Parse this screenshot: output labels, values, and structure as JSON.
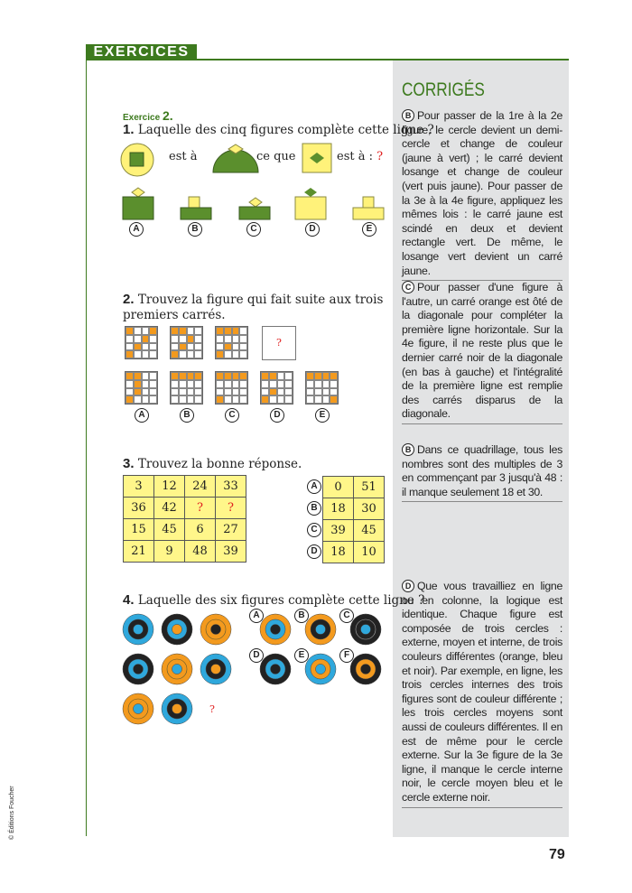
{
  "header": {
    "section": "EXERCICES"
  },
  "exercise": {
    "label": "Exercice",
    "number": "2."
  },
  "q1": {
    "num": "1.",
    "text": "Laquelle des cinq figures complète cette ligne ?",
    "w1": "est à",
    "w2": "ce que",
    "w3": "est à :",
    "mark": "?",
    "options": [
      "A",
      "B",
      "C",
      "D",
      "E"
    ]
  },
  "q2": {
    "num": "2.",
    "text": "Trouvez la figure qui fait suite aux trois premiers carrés.",
    "mark": "?",
    "sequence": [
      [
        [
          0,
          0
        ],
        [
          0,
          3
        ],
        [
          1,
          2
        ],
        [
          2,
          1
        ],
        [
          3,
          0
        ]
      ],
      [
        [
          0,
          0
        ],
        [
          0,
          1
        ],
        [
          1,
          2
        ],
        [
          2,
          1
        ],
        [
          3,
          0
        ]
      ],
      [
        [
          0,
          0
        ],
        [
          0,
          1
        ],
        [
          0,
          2
        ],
        [
          2,
          1
        ],
        [
          3,
          0
        ]
      ]
    ],
    "options": [
      {
        "letter": "A",
        "cells": [
          [
            0,
            0
          ],
          [
            0,
            1
          ],
          [
            1,
            1
          ],
          [
            2,
            1
          ],
          [
            3,
            0
          ]
        ]
      },
      {
        "letter": "B",
        "cells": [
          [
            0,
            0
          ],
          [
            0,
            1
          ],
          [
            0,
            2
          ],
          [
            0,
            3
          ]
        ]
      },
      {
        "letter": "C",
        "cells": [
          [
            0,
            0
          ],
          [
            0,
            1
          ],
          [
            0,
            2
          ],
          [
            0,
            3
          ],
          [
            3,
            0
          ]
        ]
      },
      {
        "letter": "D",
        "cells": [
          [
            0,
            0
          ],
          [
            0,
            1
          ],
          [
            2,
            1
          ],
          [
            3,
            0
          ]
        ]
      },
      {
        "letter": "E",
        "cells": [
          [
            0,
            0
          ],
          [
            0,
            1
          ],
          [
            0,
            2
          ],
          [
            0,
            3
          ],
          [
            3,
            3
          ]
        ]
      }
    ]
  },
  "q3": {
    "num": "3.",
    "text": "Trouvez la bonne réponse.",
    "grid": [
      [
        "3",
        "12",
        "24",
        "33"
      ],
      [
        "36",
        "42",
        "?",
        "?"
      ],
      [
        "15",
        "45",
        "6",
        "27"
      ],
      [
        "21",
        "9",
        "48",
        "39"
      ]
    ],
    "options": [
      {
        "letter": "A",
        "values": [
          "0",
          "51"
        ]
      },
      {
        "letter": "B",
        "values": [
          "18",
          "30"
        ]
      },
      {
        "letter": "C",
        "values": [
          "39",
          "45"
        ]
      },
      {
        "letter": "D",
        "values": [
          "18",
          "10"
        ]
      }
    ]
  },
  "q4": {
    "num": "4.",
    "text": "Laquelle des six figures complète cette ligne ?",
    "mark": "?",
    "grid": [
      [
        "blue",
        "black",
        "blue"
      ],
      [
        "black",
        "blue",
        "orange"
      ],
      [
        "orange",
        "orange",
        "black"
      ],
      [
        "black",
        "blue",
        "black"
      ],
      [
        "orange",
        "orange",
        "blue"
      ],
      [
        "blue",
        "black",
        "orange"
      ],
      [
        "orange",
        "orange",
        "blue"
      ],
      [
        "blue",
        "black",
        "orange"
      ]
    ],
    "options": [
      {
        "letter": "A",
        "rings": [
          "orange",
          "blue",
          "black"
        ]
      },
      {
        "letter": "B",
        "rings": [
          "orange",
          "black",
          "blue"
        ]
      },
      {
        "letter": "C",
        "rings": [
          "black",
          "black",
          "blue"
        ]
      },
      {
        "letter": "D",
        "rings": [
          "black",
          "blue",
          "black"
        ]
      },
      {
        "letter": "E",
        "rings": [
          "blue",
          "orange",
          "blue"
        ]
      },
      {
        "letter": "F",
        "rings": [
          "black",
          "orange",
          "black"
        ]
      }
    ]
  },
  "colors": {
    "green": "#5b8f2d",
    "yellow": "#fff27a",
    "orange": "#f39a1e",
    "blue": "#2fa8dc",
    "black": "#222222",
    "panel": "#e2e3e4"
  },
  "corriges": {
    "title": "CORRIGÉS",
    "answers": [
      {
        "letter": "B",
        "text": "Pour passer de la 1re à la 2e figure, le cercle devient un demi-cercle et change de couleur (jaune à vert) ; le carré devient losange et change de couleur (vert puis jaune). Pour passer de la 3e à la 4e figure, appliquez les mêmes lois : le carré jaune est scindé en deux et devient rectangle vert. De même, le losange vert devient un carré jaune."
      },
      {
        "letter": "C",
        "text": "Pour passer d'une figure à l'autre, un carré orange est ôté de la diagonale pour compléter la première ligne horizontale. Sur la 4e figure, il ne reste plus que le dernier carré noir de la diagonale (en bas à gauche) et l'intégralité de la première ligne est remplie des carrés disparus de la diagonale."
      },
      {
        "letter": "B",
        "text": "Dans ce quadrillage, tous les nombres sont des multiples de 3 en commençant par 3 jusqu'à 48 : il manque seulement 18 et 30."
      },
      {
        "letter": "D",
        "text": "Que vous travailliez en ligne ou en colonne, la logique est identique. Chaque figure est composée de trois cercles : externe, moyen et interne, de trois couleurs différentes (orange, bleu et noir). Par exemple, en ligne, les trois cercles internes des trois figures sont de couleur différente ; les trois cercles moyens sont aussi de couleurs différentes. Il en est de même pour le cercle externe. Sur la 3e figure de la 3e ligne, il manque le cercle interne noir, le cercle moyen bleu et le cercle externe noir."
      }
    ]
  },
  "footer": {
    "copyright": "© Éditions Foucher",
    "page": "79"
  }
}
